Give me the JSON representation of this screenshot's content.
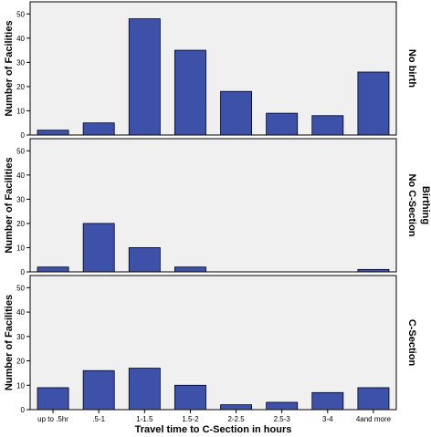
{
  "chart_data": {
    "type": "bar",
    "categories": [
      "up to .5hr",
      ".5-1",
      "1-1.5",
      "1.5-2",
      "2-2.5",
      "2.5-3",
      "3-4",
      "4and more"
    ],
    "xlabel": "Travel time to C-Section in hours",
    "ylabel": "Number of Facilities",
    "ylim": [
      0,
      55
    ],
    "yticks": [
      0,
      10,
      20,
      30,
      40,
      50
    ],
    "grid": false,
    "bar_color": "#3E51A8",
    "panel_background": "#F0F0F0",
    "outer_strip_label": "Birthing",
    "panels": [
      {
        "label": "No birth",
        "values": [
          2,
          5,
          48,
          35,
          18,
          9,
          8,
          26
        ]
      },
      {
        "label": "No C-Section",
        "values": [
          2,
          20,
          10,
          2,
          0,
          0,
          0,
          1
        ]
      },
      {
        "label": "C-Section",
        "values": [
          9,
          16,
          17,
          10,
          2,
          3,
          7,
          9
        ]
      }
    ]
  }
}
